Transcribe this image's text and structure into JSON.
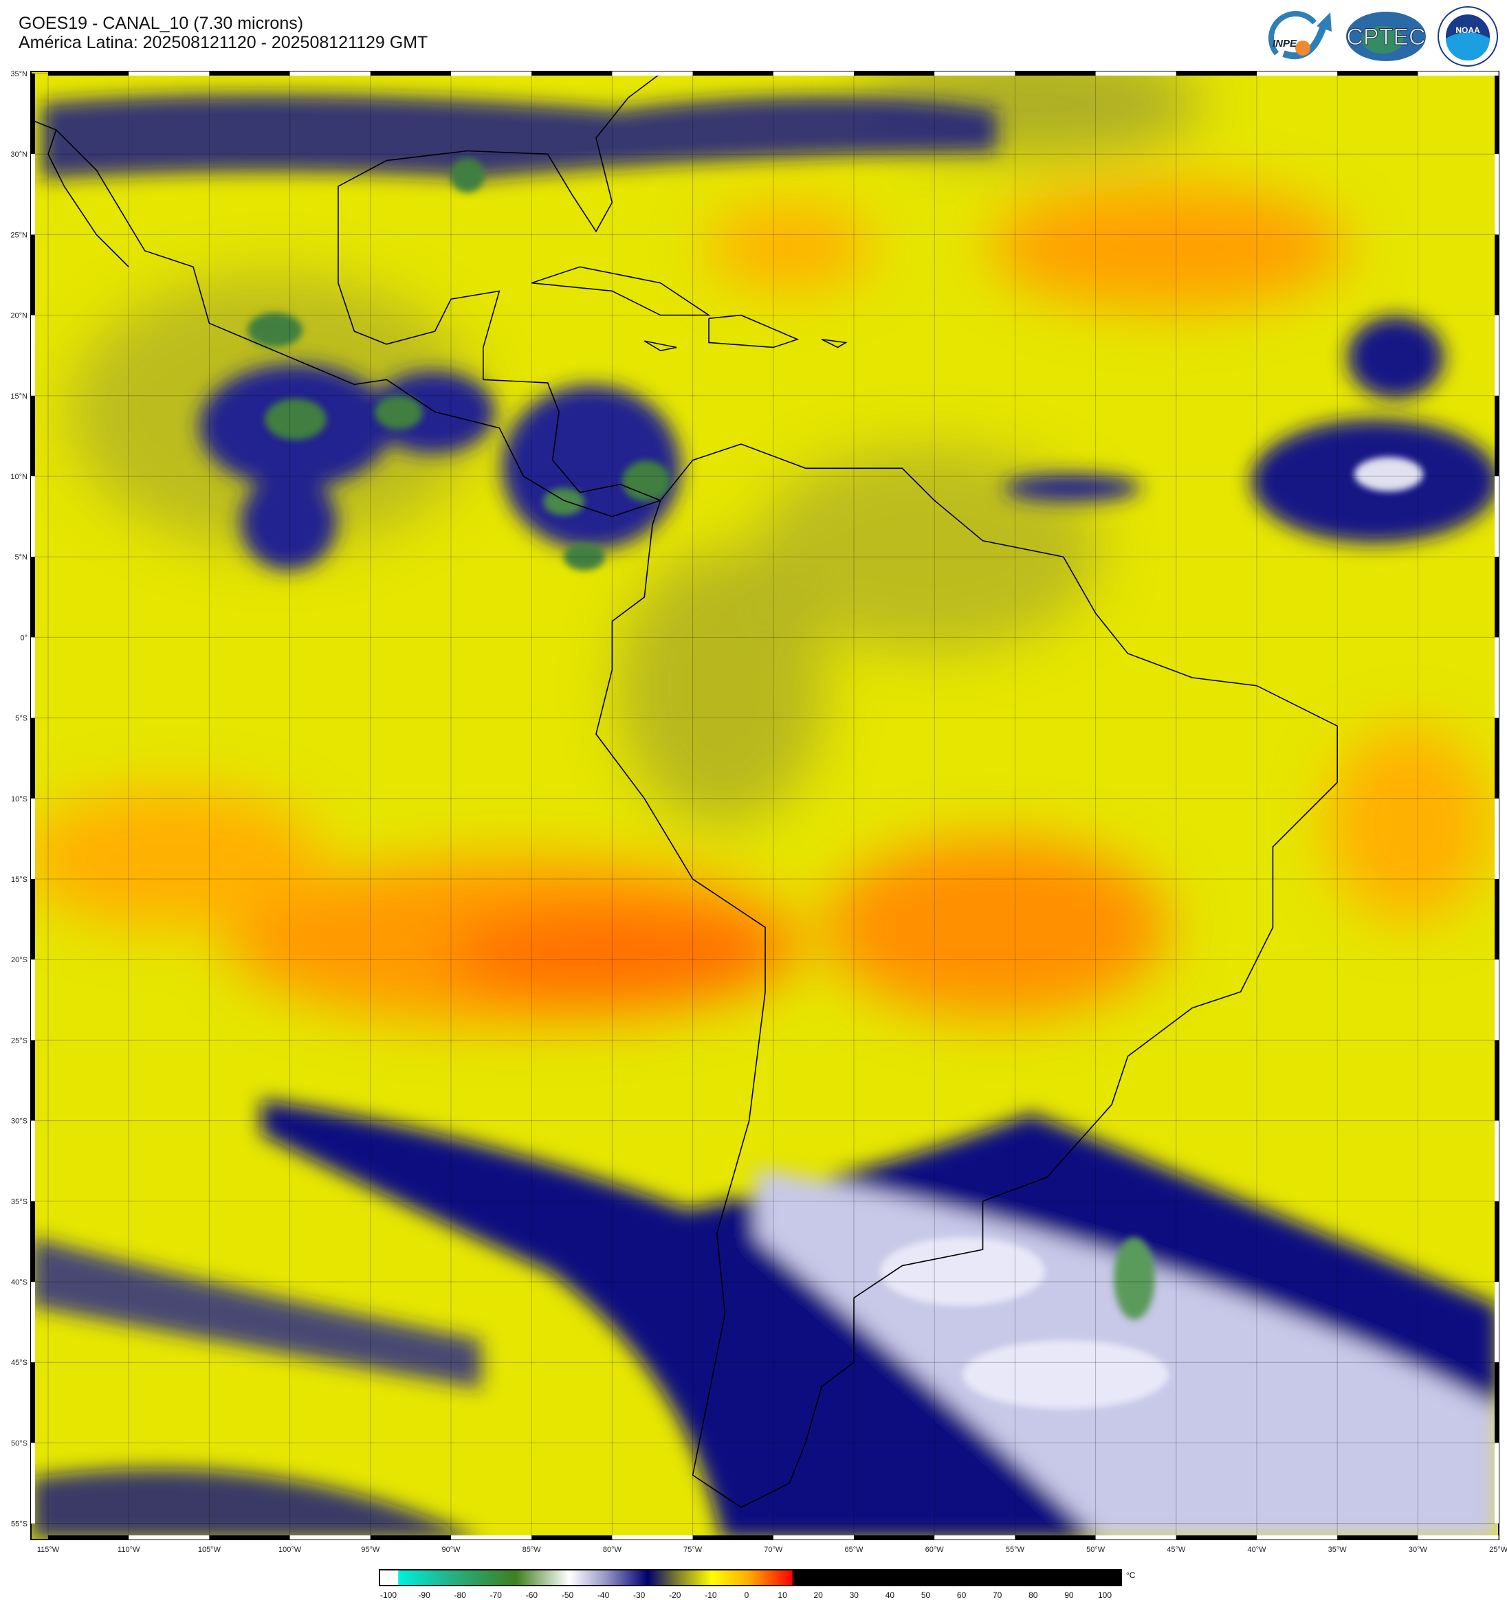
{
  "header": {
    "title": "GOES19 - CANAL_10 (7.30 microns)",
    "subtitle": "América Latina: 202508121120 - 202508121129 GMT"
  },
  "logos": [
    {
      "name": "inpe-logo",
      "text": "INPE"
    },
    {
      "name": "cptec-logo",
      "text": "CPTEC"
    },
    {
      "name": "noaa-logo",
      "text": "NOAA"
    }
  ],
  "map": {
    "lat_labels": [
      "35°N",
      "30°N",
      "25°N",
      "20°N",
      "15°N",
      "10°N",
      "5°N",
      "0°",
      "5°S",
      "10°S",
      "15°S",
      "20°S",
      "25°S",
      "30°S",
      "35°S",
      "40°S",
      "45°S",
      "50°S",
      "55°S"
    ],
    "lon_labels": [
      "115°W",
      "110°W",
      "105°W",
      "100°W",
      "95°W",
      "90°W",
      "85°W",
      "80°W",
      "75°W",
      "70°W",
      "65°W",
      "60°W",
      "55°W",
      "50°W",
      "45°W",
      "40°W",
      "35°W",
      "30°W",
      "25°W"
    ]
  },
  "colorbar": {
    "unit": "°C",
    "ticks": [
      "-100",
      "-90",
      "-80",
      "-70",
      "-60",
      "-50",
      "-40",
      "-30",
      "-20",
      "-10",
      "0",
      "10",
      "20",
      "30",
      "40",
      "50",
      "60",
      "70",
      "80",
      "90",
      "100"
    ],
    "stops": [
      {
        "t": -100,
        "color": "#ffffff"
      },
      {
        "t": -98,
        "color": "#ffffff"
      },
      {
        "t": -97.9,
        "color": "#00f0e0"
      },
      {
        "t": -85,
        "color": "#20b890"
      },
      {
        "t": -65,
        "color": "#3f7f1f"
      },
      {
        "t": -50,
        "color": "#ffffff"
      },
      {
        "t": -40,
        "color": "#9a9ac8"
      },
      {
        "t": -28,
        "color": "#000070"
      },
      {
        "t": -20,
        "color": "#7a7a30"
      },
      {
        "t": -10,
        "color": "#ffff00"
      },
      {
        "t": 0,
        "color": "#ffb000"
      },
      {
        "t": 12.5,
        "color": "#ff0000"
      },
      {
        "t": 12.6,
        "color": "#000000"
      },
      {
        "t": 105,
        "color": "#000000"
      }
    ]
  }
}
